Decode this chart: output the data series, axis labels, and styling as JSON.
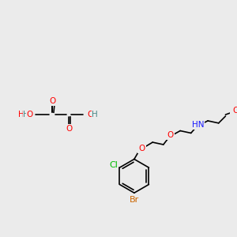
{
  "bg_color": "#ebebeb",
  "bond_color": "#000000",
  "colors": {
    "O": "#ff0000",
    "N": "#1a1aff",
    "Cl": "#00bb00",
    "Br": "#cc6600",
    "H": "#4a8888",
    "C": "#000000"
  },
  "font_size": 7.5,
  "lw": 1.2
}
